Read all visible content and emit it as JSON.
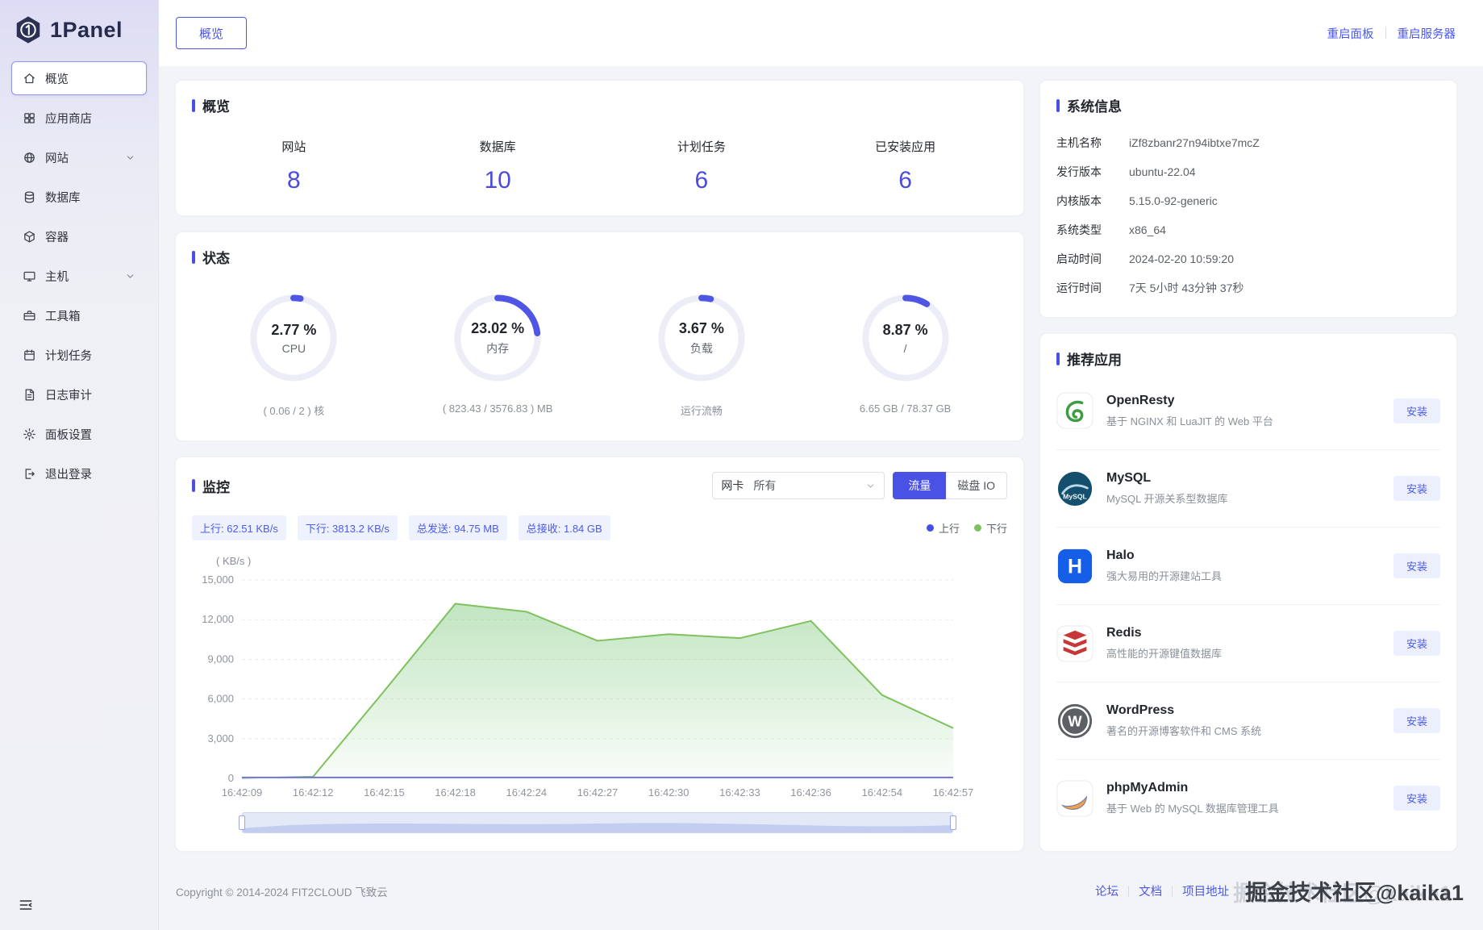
{
  "brand": {
    "name": "1Panel"
  },
  "sidebar": {
    "items": [
      {
        "key": "overview",
        "label": "概览",
        "icon": "home-icon",
        "active": true
      },
      {
        "key": "app-store",
        "label": "应用商店",
        "icon": "appstore-icon"
      },
      {
        "key": "website",
        "label": "网站",
        "icon": "globe-icon",
        "chevron": true
      },
      {
        "key": "database",
        "label": "数据库",
        "icon": "database-icon"
      },
      {
        "key": "container",
        "label": "容器",
        "icon": "container-icon"
      },
      {
        "key": "host",
        "label": "主机",
        "icon": "host-icon",
        "chevron": true
      },
      {
        "key": "toolbox",
        "label": "工具箱",
        "icon": "toolbox-icon"
      },
      {
        "key": "cronjob",
        "label": "计划任务",
        "icon": "schedule-icon"
      },
      {
        "key": "logs",
        "label": "日志审计",
        "icon": "log-icon"
      },
      {
        "key": "settings",
        "label": "面板设置",
        "icon": "settings-icon"
      },
      {
        "key": "logout",
        "label": "退出登录",
        "icon": "logout-icon"
      }
    ]
  },
  "topbar": {
    "tab": "概览",
    "restart_panel": "重启面板",
    "restart_server": "重启服务器"
  },
  "overview": {
    "title": "概览",
    "stats": [
      {
        "key": "websites",
        "label": "网站",
        "value": "8"
      },
      {
        "key": "databases",
        "label": "数据库",
        "value": "10"
      },
      {
        "key": "cronjobs",
        "label": "计划任务",
        "value": "6"
      },
      {
        "key": "installed-apps",
        "label": "已安装应用",
        "value": "6"
      }
    ]
  },
  "status": {
    "title": "状态",
    "gauges": [
      {
        "key": "cpu",
        "percent": 2.77,
        "display": "2.77 %",
        "label": "CPU",
        "sub": "( 0.06 / 2 ) 核"
      },
      {
        "key": "memory",
        "percent": 23.02,
        "display": "23.02 %",
        "label": "内存",
        "sub": "( 823.43 / 3576.83 ) MB"
      },
      {
        "key": "load",
        "percent": 3.67,
        "display": "3.67 %",
        "label": "负载",
        "sub": "运行流畅"
      },
      {
        "key": "disk",
        "percent": 8.87,
        "display": "8.87 %",
        "label": "/",
        "sub": "6.65 GB / 78.37 GB"
      }
    ]
  },
  "monitor": {
    "title": "监控",
    "select_label": "网卡",
    "select_value": "所有",
    "buttons": {
      "traffic": "流量",
      "disk": "磁盘 IO"
    },
    "tags": [
      "上行: 62.51 KB/s",
      "下行: 3813.2 KB/s",
      "总发送: 94.75 MB",
      "总接收: 1.84 GB"
    ],
    "legend": [
      {
        "key": "up",
        "label": "上行",
        "color": "#4350e6"
      },
      {
        "key": "down",
        "label": "下行",
        "color": "#7fc15e"
      }
    ]
  },
  "chart_data": {
    "type": "area",
    "title": "",
    "xlabel": "",
    "ylabel": "( KB/s )",
    "ylim": [
      0,
      15000
    ],
    "yticks": [
      0,
      3000,
      6000,
      9000,
      12000,
      15000
    ],
    "grid": true,
    "legend_position": "top-right",
    "x": [
      "16:42:09",
      "16:42:12",
      "16:42:15",
      "16:42:18",
      "16:42:24",
      "16:42:27",
      "16:42:30",
      "16:42:33",
      "16:42:36",
      "16:42:54",
      "16:42:57"
    ],
    "series": [
      {
        "name": "上行",
        "color": "#5a5fe0",
        "values": [
          62,
          62,
          62,
          62,
          62,
          62,
          62,
          62,
          62,
          62,
          62
        ]
      },
      {
        "name": "下行",
        "color": "#7fc15e",
        "values": [
          0,
          120,
          6600,
          13200,
          12600,
          10400,
          10900,
          10600,
          11900,
          6300,
          3800
        ]
      }
    ]
  },
  "system_info": {
    "title": "系统信息",
    "rows": [
      {
        "label": "主机名称",
        "value": "iZf8zbanr27n94ibtxe7mcZ"
      },
      {
        "label": "发行版本",
        "value": "ubuntu-22.04"
      },
      {
        "label": "内核版本",
        "value": "5.15.0-92-generic"
      },
      {
        "label": "系统类型",
        "value": "x86_64"
      },
      {
        "label": "启动时间",
        "value": "2024-02-20 10:59:20"
      },
      {
        "label": "运行时间",
        "value": "7天 5小时 43分钟 37秒"
      }
    ]
  },
  "apps": {
    "title": "推荐应用",
    "install_label": "安装",
    "items": [
      {
        "key": "openresty",
        "name": "OpenResty",
        "desc": "基于 NGINX 和 LuaJIT 的 Web 平台",
        "icon": "openresty-icon"
      },
      {
        "key": "mysql",
        "name": "MySQL",
        "desc": "MySQL 开源关系型数据库",
        "icon": "mysql-icon"
      },
      {
        "key": "halo",
        "name": "Halo",
        "desc": "强大易用的开源建站工具",
        "icon": "halo-icon"
      },
      {
        "key": "redis",
        "name": "Redis",
        "desc": "高性能的开源键值数据库",
        "icon": "redis-icon"
      },
      {
        "key": "wordpress",
        "name": "WordPress",
        "desc": "著名的开源博客软件和 CMS 系统",
        "icon": "wordpress-icon"
      },
      {
        "key": "phpmyadmin",
        "name": "phpMyAdmin",
        "desc": "基于 Web 的 MySQL 数据库管理工具",
        "icon": "phpmyadmin-icon"
      }
    ]
  },
  "footer": {
    "copyright": "Copyright © 2014-2024 FIT2CLOUD 飞致云",
    "links": [
      "论坛",
      "文档",
      "项目地址"
    ],
    "watermark": "掘金技术社区@kaika1"
  },
  "colors": {
    "primary": "#4b4bdf",
    "gauge_arc": "#5056e4",
    "chart_down": "#7fc15e",
    "chart_up": "#5a5fe0",
    "tag_bg": "#eef1fe"
  }
}
